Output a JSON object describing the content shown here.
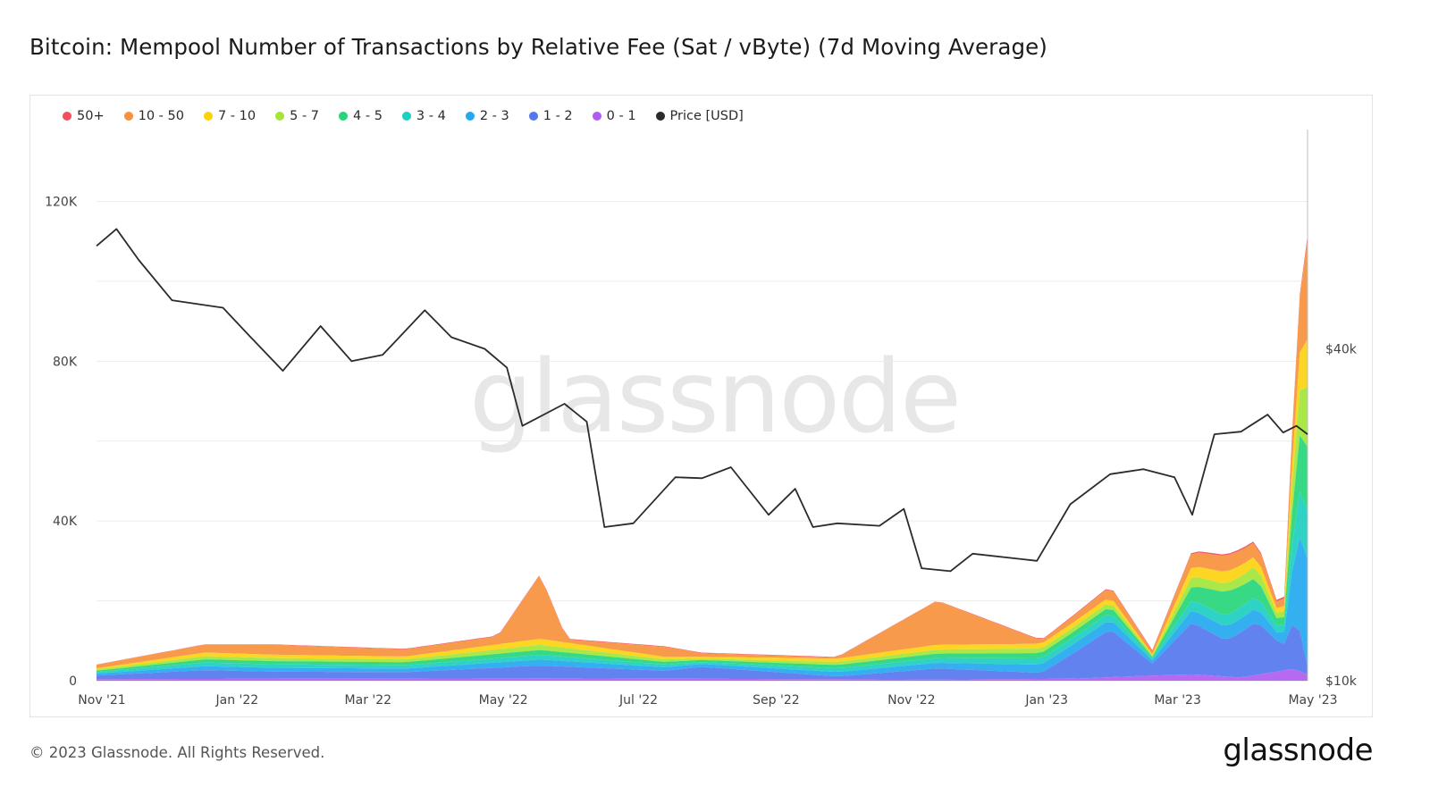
{
  "page": {
    "title": "Bitcoin: Mempool Number of Transactions by Relative Fee (Sat / vByte) (7d Moving Average)",
    "watermark": "glassnode",
    "footer_copyright": "© 2023 Glassnode. All Rights Reserved.",
    "footer_logo": "glassnode"
  },
  "legend": [
    {
      "label": "50+",
      "color": "#f24f5e"
    },
    {
      "label": "10 - 50",
      "color": "#f7913d"
    },
    {
      "label": "7 - 10",
      "color": "#fcd20f"
    },
    {
      "label": "5 - 7",
      "color": "#a3e63a"
    },
    {
      "label": "4 - 5",
      "color": "#27d67a"
    },
    {
      "label": "3 - 4",
      "color": "#1dcfc0"
    },
    {
      "label": "2 - 3",
      "color": "#23a9f0"
    },
    {
      "label": "1 - 2",
      "color": "#5577ef"
    },
    {
      "label": "0 - 1",
      "color": "#b05cf0"
    },
    {
      "label": "Price [USD]",
      "color": "#2b2b2b"
    }
  ],
  "chart_data": {
    "type": "area",
    "stacked": true,
    "x_range": [
      "2021-11-01",
      "2023-05-01"
    ],
    "x_ticks": [
      {
        "label": "Nov '21",
        "date": "2021-11-01"
      },
      {
        "label": "Jan '22",
        "date": "2022-01-01"
      },
      {
        "label": "Mar '22",
        "date": "2022-03-01"
      },
      {
        "label": "May '22",
        "date": "2022-05-01"
      },
      {
        "label": "Jul '22",
        "date": "2022-07-01"
      },
      {
        "label": "Sep '22",
        "date": "2022-09-01"
      },
      {
        "label": "Nov '22",
        "date": "2022-11-01"
      },
      {
        "label": "Jan '23",
        "date": "2023-01-01"
      },
      {
        "label": "Mar '23",
        "date": "2023-03-01"
      },
      {
        "label": "May '23",
        "date": "2023-05-01"
      }
    ],
    "y_left": {
      "range": [
        0,
        138000
      ],
      "ticks": [
        {
          "label": "0",
          "value": 0
        },
        {
          "label": "40K",
          "value": 40000
        },
        {
          "label": "80K",
          "value": 80000
        },
        {
          "label": "120K",
          "value": 120000
        }
      ]
    },
    "y_right": {
      "scale": "log",
      "range": [
        10000,
        100000
      ],
      "ticks": [
        {
          "label": "$10k",
          "value": 10000
        },
        {
          "label": "$40k",
          "value": 40000
        }
      ]
    },
    "grid": true,
    "legend_position": "top-left",
    "series": [
      {
        "name": "0 - 1",
        "color": "#b05cf0",
        "points": [
          [
            "2021-11-01",
            400
          ],
          [
            "2022-05-20",
            600
          ],
          [
            "2022-11-15",
            300
          ],
          [
            "2023-01-15",
            500
          ],
          [
            "2023-02-15",
            1200
          ],
          [
            "2023-03-10",
            1600
          ],
          [
            "2023-04-01",
            800
          ],
          [
            "2023-04-25",
            3000
          ],
          [
            "2023-05-01",
            1500
          ]
        ]
      },
      {
        "name": "1 - 2",
        "color": "#5577ef",
        "points": [
          [
            "2021-11-01",
            900
          ],
          [
            "2021-12-20",
            2200
          ],
          [
            "2022-01-20",
            1800
          ],
          [
            "2022-03-20",
            1600
          ],
          [
            "2022-05-20",
            3200
          ],
          [
            "2022-07-15",
            2000
          ],
          [
            "2022-08-01",
            3000
          ],
          [
            "2022-10-01",
            700
          ],
          [
            "2022-11-15",
            2800
          ],
          [
            "2023-01-01",
            1500
          ],
          [
            "2023-02-01",
            12000
          ],
          [
            "2023-02-20",
            3000
          ],
          [
            "2023-03-10",
            13000
          ],
          [
            "2023-03-25",
            9000
          ],
          [
            "2023-04-08",
            13500
          ],
          [
            "2023-04-20",
            6000
          ],
          [
            "2023-04-26",
            13500
          ],
          [
            "2023-05-01",
            2000
          ]
        ]
      },
      {
        "name": "2 - 3",
        "color": "#23a9f0",
        "points": [
          [
            "2021-11-01",
            500
          ],
          [
            "2021-12-20",
            1000
          ],
          [
            "2022-03-20",
            900
          ],
          [
            "2022-05-20",
            1500
          ],
          [
            "2022-08-01",
            700
          ],
          [
            "2022-11-15",
            1400
          ],
          [
            "2023-02-01",
            2500
          ],
          [
            "2023-02-20",
            800
          ],
          [
            "2023-03-10",
            3200
          ],
          [
            "2023-04-08",
            3500
          ],
          [
            "2023-04-20",
            1500
          ],
          [
            "2023-04-28",
            25000
          ],
          [
            "2023-05-01",
            27000
          ]
        ]
      },
      {
        "name": "3 - 4",
        "color": "#1dcfc0",
        "points": [
          [
            "2021-11-01",
            400
          ],
          [
            "2021-12-20",
            900
          ],
          [
            "2022-03-20",
            800
          ],
          [
            "2022-05-20",
            1200
          ],
          [
            "2022-08-01",
            500
          ],
          [
            "2022-11-15",
            1200
          ],
          [
            "2023-02-01",
            1800
          ],
          [
            "2023-02-20",
            500
          ],
          [
            "2023-03-10",
            2500
          ],
          [
            "2023-04-08",
            3000
          ],
          [
            "2023-04-20",
            1200
          ],
          [
            "2023-04-28",
            12000
          ],
          [
            "2023-05-01",
            12000
          ]
        ]
      },
      {
        "name": "4 - 5",
        "color": "#27d67a",
        "points": [
          [
            "2021-11-01",
            300
          ],
          [
            "2021-12-20",
            800
          ],
          [
            "2022-03-20",
            800
          ],
          [
            "2022-05-20",
            1200
          ],
          [
            "2022-08-01",
            500
          ],
          [
            "2022-11-15",
            1100
          ],
          [
            "2023-02-01",
            1500
          ],
          [
            "2023-02-20",
            400
          ],
          [
            "2023-03-10",
            3500
          ],
          [
            "2023-03-25",
            6000
          ],
          [
            "2023-04-08",
            4500
          ],
          [
            "2023-04-20",
            1000
          ],
          [
            "2023-04-28",
            15000
          ],
          [
            "2023-05-01",
            16000
          ]
        ]
      },
      {
        "name": "5 - 7",
        "color": "#a3e63a",
        "points": [
          [
            "2021-11-01",
            300
          ],
          [
            "2021-12-20",
            800
          ],
          [
            "2022-03-20",
            700
          ],
          [
            "2022-05-20",
            1300
          ],
          [
            "2022-08-01",
            400
          ],
          [
            "2022-11-15",
            1000
          ],
          [
            "2023-02-01",
            1200
          ],
          [
            "2023-02-20",
            300
          ],
          [
            "2023-03-10",
            2500
          ],
          [
            "2023-03-25",
            2000
          ],
          [
            "2023-04-08",
            3000
          ],
          [
            "2023-04-20",
            800
          ],
          [
            "2023-04-28",
            12000
          ],
          [
            "2023-05-01",
            15000
          ]
        ]
      },
      {
        "name": "7 - 10",
        "color": "#fcd20f",
        "points": [
          [
            "2021-11-01",
            300
          ],
          [
            "2021-12-20",
            900
          ],
          [
            "2022-03-20",
            700
          ],
          [
            "2022-05-20",
            1500
          ],
          [
            "2022-08-01",
            400
          ],
          [
            "2022-11-15",
            1200
          ],
          [
            "2023-02-01",
            1200
          ],
          [
            "2023-02-20",
            300
          ],
          [
            "2023-03-10",
            2500
          ],
          [
            "2023-03-25",
            3000
          ],
          [
            "2023-04-08",
            2500
          ],
          [
            "2023-04-20",
            700
          ],
          [
            "2023-04-28",
            10000
          ],
          [
            "2023-05-01",
            12000
          ]
        ]
      },
      {
        "name": "10 - 50",
        "color": "#f7913d",
        "points": [
          [
            "2021-11-01",
            900
          ],
          [
            "2021-12-20",
            2000
          ],
          [
            "2022-01-20",
            2500
          ],
          [
            "2022-03-20",
            1800
          ],
          [
            "2022-05-01",
            2000
          ],
          [
            "2022-05-20",
            16000
          ],
          [
            "2022-06-01",
            800
          ],
          [
            "2022-07-15",
            2500
          ],
          [
            "2022-08-01",
            900
          ],
          [
            "2022-10-01",
            300
          ],
          [
            "2022-11-15",
            11000
          ],
          [
            "2023-01-01",
            800
          ],
          [
            "2023-02-01",
            2500
          ],
          [
            "2023-02-20",
            800
          ],
          [
            "2023-03-10",
            3500
          ],
          [
            "2023-03-25",
            4000
          ],
          [
            "2023-04-08",
            3500
          ],
          [
            "2023-04-20",
            1000
          ],
          [
            "2023-04-28",
            15000
          ],
          [
            "2023-05-01",
            25000
          ]
        ]
      },
      {
        "name": "50+",
        "color": "#f24f5e",
        "points": [
          [
            "2021-11-01",
            50
          ],
          [
            "2022-05-20",
            200
          ],
          [
            "2022-11-15",
            100
          ],
          [
            "2023-03-10",
            300
          ],
          [
            "2023-04-28",
            500
          ],
          [
            "2023-05-01",
            1000
          ]
        ]
      }
    ],
    "price_series": {
      "name": "Price [USD]",
      "color": "#2b2b2b",
      "axis": "right",
      "points": [
        [
          "2021-11-01",
          61500
        ],
        [
          "2021-11-10",
          66000
        ],
        [
          "2021-11-20",
          58000
        ],
        [
          "2021-12-05",
          49000
        ],
        [
          "2021-12-28",
          47500
        ],
        [
          "2022-01-10",
          41800
        ],
        [
          "2022-01-24",
          36500
        ],
        [
          "2022-02-10",
          44000
        ],
        [
          "2022-02-24",
          38000
        ],
        [
          "2022-03-10",
          39000
        ],
        [
          "2022-03-29",
          47000
        ],
        [
          "2022-04-10",
          42000
        ],
        [
          "2022-04-25",
          40000
        ],
        [
          "2022-05-05",
          37000
        ],
        [
          "2022-05-12",
          29000
        ],
        [
          "2022-05-31",
          31800
        ],
        [
          "2022-06-10",
          29500
        ],
        [
          "2022-06-18",
          19000
        ],
        [
          "2022-07-01",
          19300
        ],
        [
          "2022-07-20",
          23400
        ],
        [
          "2022-08-01",
          23300
        ],
        [
          "2022-08-14",
          24400
        ],
        [
          "2022-08-31",
          20000
        ],
        [
          "2022-09-12",
          22300
        ],
        [
          "2022-09-20",
          19000
        ],
        [
          "2022-10-01",
          19300
        ],
        [
          "2022-10-20",
          19100
        ],
        [
          "2022-10-31",
          20500
        ],
        [
          "2022-11-08",
          16000
        ],
        [
          "2022-11-21",
          15800
        ],
        [
          "2022-12-01",
          17000
        ],
        [
          "2022-12-30",
          16500
        ],
        [
          "2023-01-14",
          20900
        ],
        [
          "2023-02-01",
          23700
        ],
        [
          "2023-02-16",
          24200
        ],
        [
          "2023-03-02",
          23400
        ],
        [
          "2023-03-10",
          20000
        ],
        [
          "2023-03-20",
          28000
        ],
        [
          "2023-04-01",
          28300
        ],
        [
          "2023-04-13",
          30400
        ],
        [
          "2023-04-20",
          28200
        ],
        [
          "2023-04-26",
          29000
        ],
        [
          "2023-05-01",
          28000
        ]
      ]
    }
  }
}
